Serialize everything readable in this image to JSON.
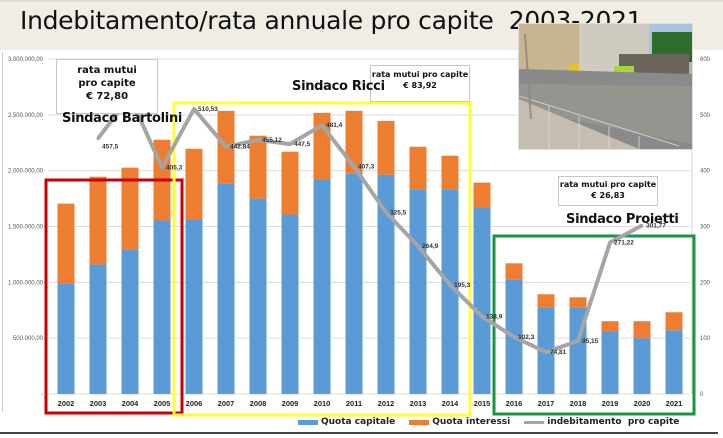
{
  "title": "Indebitamento/rata annuale pro capite  2003-2021",
  "chart_data": {
    "type": "bar",
    "stacked": true,
    "title": "Indebitamento/rata annuale pro capite  2003-2021",
    "categories": [
      "2002",
      "2003",
      "2004",
      "2005",
      "2006",
      "2007",
      "2008",
      "2009",
      "2010",
      "2011",
      "2012",
      "2013",
      "2014",
      "2015",
      "2016",
      "2017",
      "2018",
      "2019",
      "2020",
      "2021"
    ],
    "series": [
      {
        "name": "Quota capitale",
        "axis": "left",
        "color": "#5b9bd5",
        "values": [
          991000,
          1161000,
          1295000,
          1554000,
          1562000,
          1884000,
          1750000,
          1607000,
          1920000,
          1973000,
          1964000,
          1830000,
          1830000,
          1670000,
          1027000,
          777000,
          777000,
          563000,
          500000,
          571000
        ]
      },
      {
        "name": "Quota interessi",
        "axis": "left",
        "color": "#ed7d31",
        "values": [
          714000,
          785000,
          732000,
          723000,
          634000,
          652000,
          563000,
          563000,
          598000,
          563000,
          482000,
          384000,
          304000,
          223000,
          143000,
          116000,
          89000,
          89000,
          152000,
          161000
        ]
      },
      {
        "name": "indebitamento  pro capite",
        "type": "line",
        "axis": "right",
        "color": "#a5a5a5",
        "categories": [
          "2003",
          "2004",
          "2005",
          "2006",
          "2007",
          "2008",
          "2009",
          "2010",
          "2011",
          "2012",
          "2013",
          "2014",
          "2015",
          "2016",
          "2017",
          "2018",
          "2019",
          "2020"
        ],
        "values": [
          457.5,
          532.98,
          405.3,
          510.53,
          442.84,
          455.12,
          447.5,
          481.4,
          407.3,
          325.5,
          264.9,
          195.3,
          138.9,
          102.3,
          74.81,
          95.15,
          271.22,
          301.77
        ],
        "labels": [
          "457,5",
          "532,98",
          "405,3",
          "510,53",
          "442,84",
          "455,12",
          "447,5",
          "481,4",
          "407,3",
          "325,5",
          "264,9",
          "195,3",
          "138,9",
          "102,3",
          "74,81",
          "95,15",
          "271,22",
          "301,77"
        ]
      }
    ],
    "y_left": {
      "min": 0,
      "max": 3000000,
      "ticks": [
        "-",
        "500.000,00",
        "1.000.000,00",
        "1.500.000,00",
        "2.000.000,00",
        "2.500.000,00",
        "3.000.000,00"
      ]
    },
    "y_right": {
      "min": 0,
      "max": 600,
      "ticks": [
        "0",
        "100",
        "200",
        "300",
        "400",
        "500",
        "600"
      ]
    },
    "grid": true,
    "legend": "bottom",
    "xlabel": "",
    "ylabel": ""
  },
  "annotations": {
    "bartolini": {
      "mayor": "Sindaco Bartolini",
      "rate_line1": "rata mutui",
      "rate_line2": "pro capite",
      "rate_value": "€ 72,80",
      "color": "#cc0000",
      "from": "2002",
      "to": "2005"
    },
    "ricci": {
      "mayor": "Sindaco Ricci",
      "rate_line1": "rata mutui pro capite",
      "rate_value": "€ 83,92",
      "color": "#ffff33",
      "from": "2006",
      "to": "2014"
    },
    "proietti": {
      "mayor": "Sindaco Proietti",
      "rate_line1": "rata mutui pro capite",
      "rate_value": "€ 26,83",
      "color": "#1a9641",
      "from": "2016",
      "to": "2021"
    }
  },
  "legend": {
    "capitale": "Quota capitale",
    "interessi": "Quota interessi",
    "indebitamento": "indebitamento  pro capite"
  },
  "photo": {
    "description": "stacked paving stones behind construction fence in front of a building"
  }
}
